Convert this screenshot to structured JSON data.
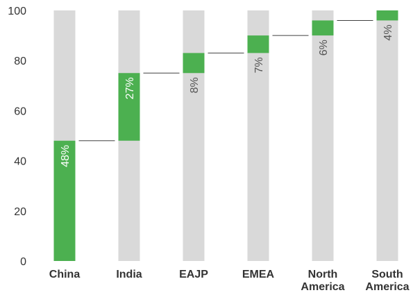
{
  "chart_data": {
    "type": "bar",
    "subtype": "waterfall",
    "categories": [
      "China",
      "India",
      "EAJP",
      "EMEA",
      "North America",
      "South America"
    ],
    "category_lines": [
      [
        "China"
      ],
      [
        "India"
      ],
      [
        "EAJP"
      ],
      [
        "EMEA"
      ],
      [
        "North",
        "America"
      ],
      [
        "South",
        "America"
      ]
    ],
    "values": [
      48,
      27,
      8,
      7,
      6,
      4
    ],
    "labels": [
      "48%",
      "27%",
      "8%",
      "7%",
      "6%",
      "4%"
    ],
    "ylim": [
      0,
      100
    ],
    "yticks": [
      0,
      20,
      40,
      60,
      80,
      100
    ],
    "title": "",
    "xlabel": "",
    "ylabel": "",
    "grid": false,
    "legend": "none",
    "colors": {
      "segment": "#4cb050",
      "track": "#d9d9d9",
      "connector": "#404040",
      "label_inside": "#ffffff",
      "label_outside": "#555555"
    }
  }
}
